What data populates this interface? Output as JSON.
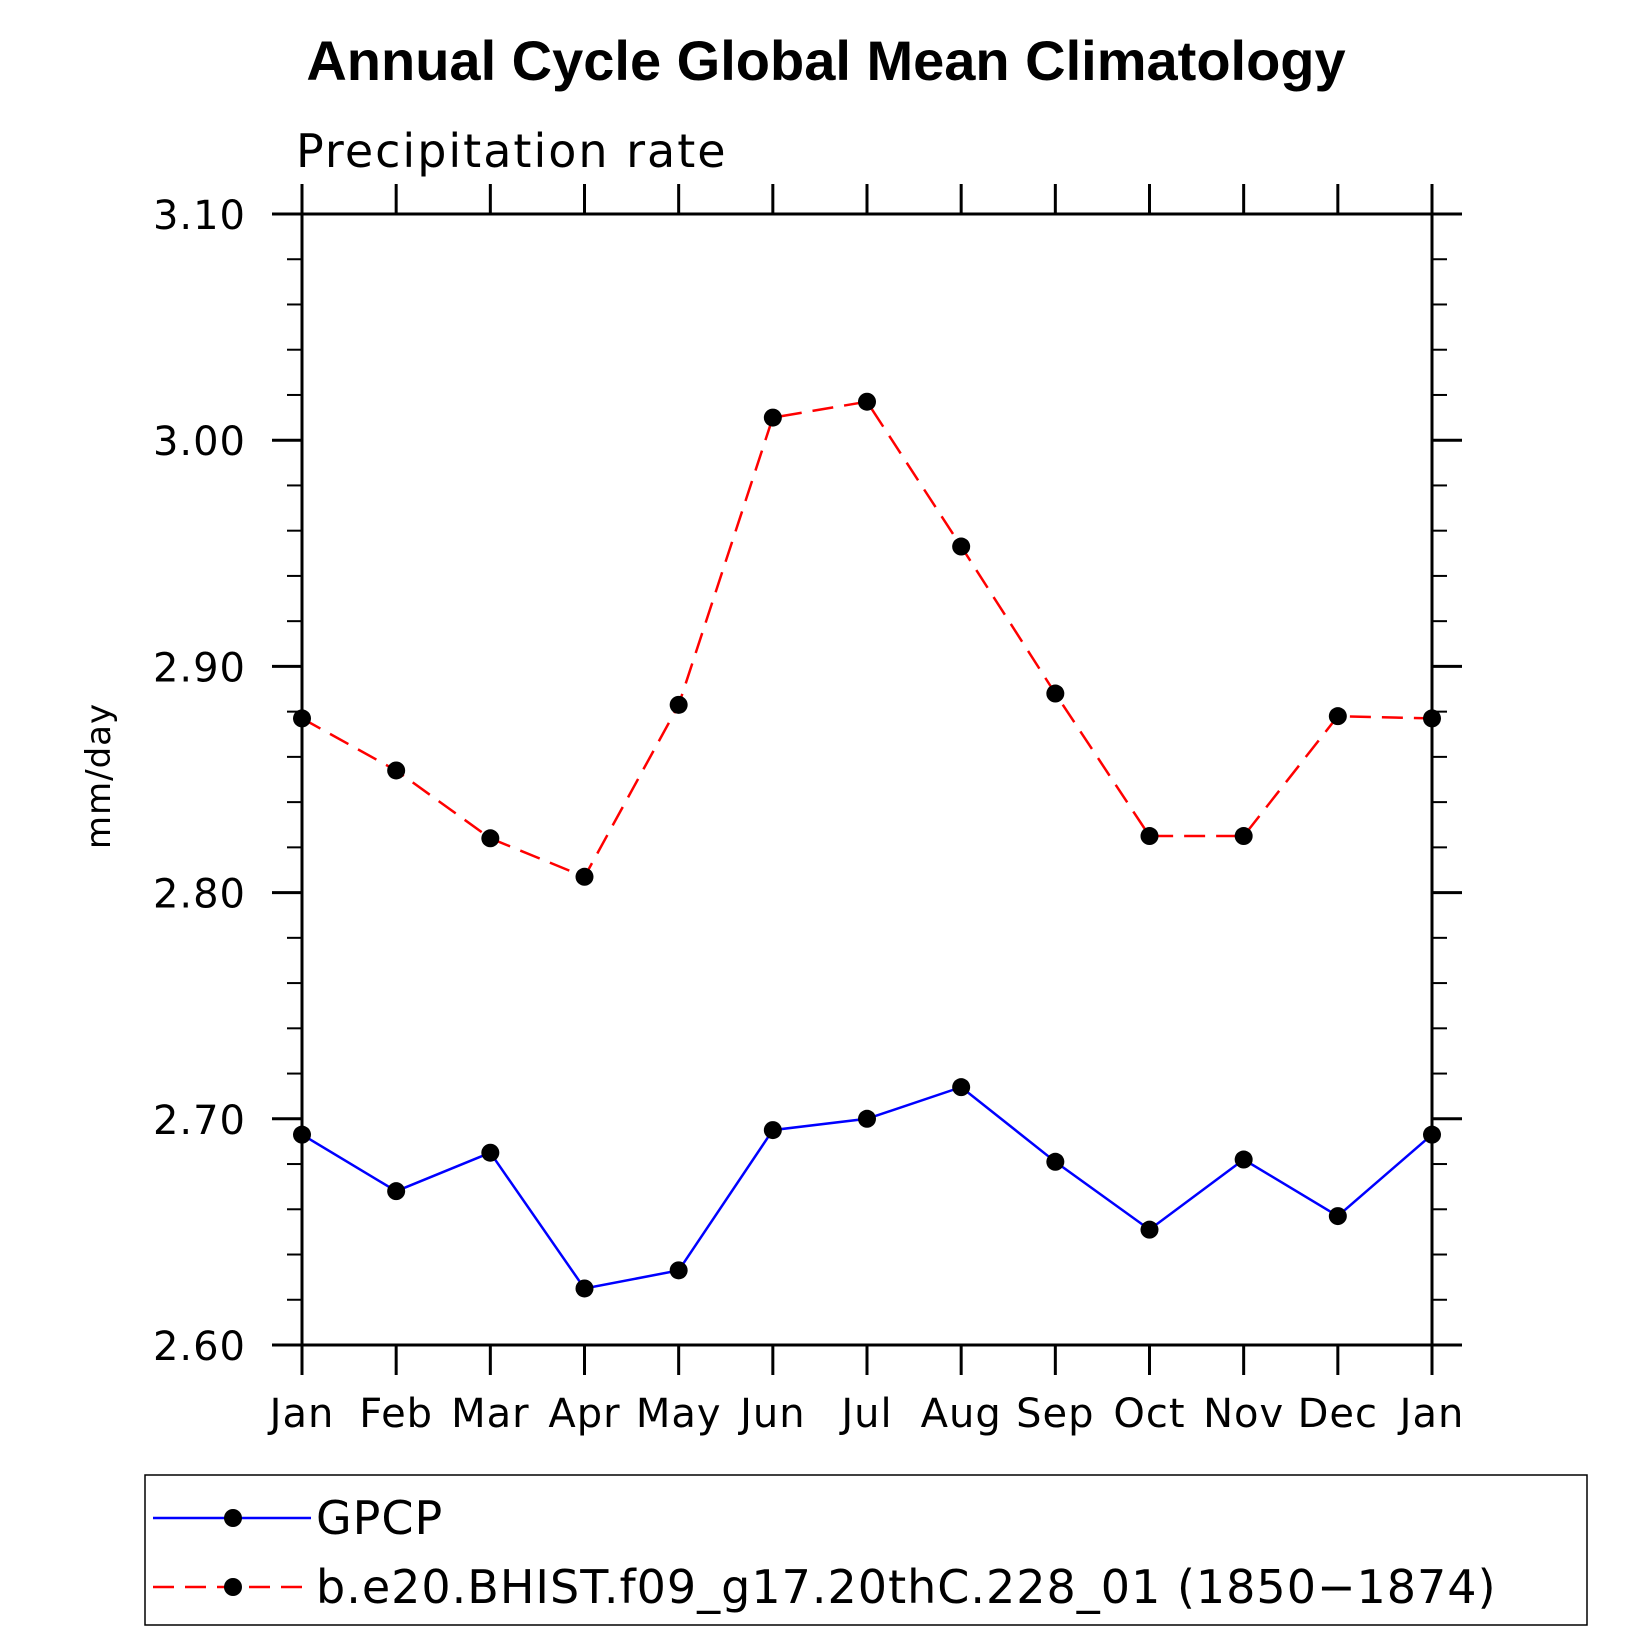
{
  "chart_data": {
    "type": "line",
    "title": "Annual Cycle Global Mean Climatology",
    "subtitle": "Precipitation rate",
    "xlabel": "",
    "ylabel": "mm/day",
    "categories": [
      "Jan",
      "Feb",
      "Mar",
      "Apr",
      "May",
      "Jun",
      "Jul",
      "Aug",
      "Sep",
      "Oct",
      "Nov",
      "Dec",
      "Jan"
    ],
    "ylim": [
      2.6,
      3.1
    ],
    "yticks": [
      "2.60",
      "2.70",
      "2.80",
      "2.90",
      "3.00",
      "3.10"
    ],
    "grid": false,
    "legend_position": "bottom",
    "series": [
      {
        "name": "GPCP",
        "color": "#0000ff",
        "line_style": "solid",
        "marker": "filled-circle",
        "values": [
          2.693,
          2.668,
          2.685,
          2.625,
          2.633,
          2.695,
          2.7,
          2.714,
          2.681,
          2.651,
          2.682,
          2.657,
          2.693
        ]
      },
      {
        "name": "b.e20.BHIST.f09_g17.20thC.228_01 (1850−1874)",
        "color": "#ff0000",
        "line_style": "dashed",
        "marker": "filled-circle",
        "values": [
          2.877,
          2.854,
          2.824,
          2.807,
          2.883,
          3.01,
          3.017,
          2.953,
          2.888,
          2.825,
          2.825,
          2.878,
          2.877
        ]
      }
    ]
  }
}
